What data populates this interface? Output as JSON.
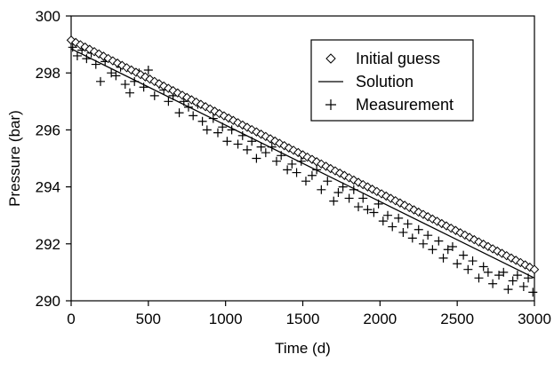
{
  "chart_data": {
    "type": "line",
    "xlabel": "Time (d)",
    "ylabel": "Pressure (bar)",
    "xlim": [
      0,
      3000
    ],
    "ylim": [
      290,
      300
    ],
    "x_ticks": [
      0,
      500,
      1000,
      1500,
      2000,
      2500,
      3000
    ],
    "y_ticks": [
      290,
      292,
      294,
      296,
      298,
      300
    ],
    "x_tick_labels": [
      "0",
      "500",
      "1000",
      "1500",
      "2000",
      "2500",
      "3000"
    ],
    "y_tick_labels": [
      "290",
      "292",
      "294",
      "296",
      "298",
      "300"
    ],
    "grid": false,
    "legend_position": "top-right",
    "series": [
      {
        "name": "Initial guess",
        "marker": "diamond",
        "x_start": 0,
        "x_end": 3000,
        "x_step": 30,
        "y_start": 299.15,
        "y_end": 291.1
      },
      {
        "name": "Solution",
        "marker": "line",
        "x": [
          0,
          3000
        ],
        "y": [
          298.85,
          290.8
        ]
      },
      {
        "name": "Measurement",
        "marker": "plus",
        "x": [
          10,
          40,
          70,
          100,
          130,
          160,
          190,
          220,
          260,
          290,
          320,
          350,
          380,
          410,
          440,
          470,
          500,
          540,
          570,
          600,
          630,
          660,
          700,
          730,
          760,
          790,
          820,
          850,
          880,
          920,
          950,
          980,
          1010,
          1040,
          1080,
          1110,
          1140,
          1170,
          1200,
          1230,
          1260,
          1300,
          1330,
          1360,
          1400,
          1430,
          1460,
          1490,
          1520,
          1560,
          1590,
          1620,
          1660,
          1700,
          1730,
          1760,
          1800,
          1830,
          1860,
          1890,
          1920,
          1960,
          1990,
          2020,
          2050,
          2080,
          2120,
          2150,
          2180,
          2210,
          2250,
          2280,
          2310,
          2340,
          2380,
          2410,
          2440,
          2470,
          2500,
          2540,
          2570,
          2600,
          2640,
          2670,
          2700,
          2730,
          2770,
          2800,
          2830,
          2860,
          2890,
          2930,
          2960,
          2990
        ],
        "y": [
          298.9,
          298.6,
          298.8,
          298.5,
          298.7,
          298.3,
          297.7,
          298.4,
          298.0,
          297.9,
          298.2,
          297.6,
          297.3,
          297.7,
          298.0,
          297.5,
          298.1,
          297.2,
          297.6,
          297.4,
          297.0,
          297.2,
          296.6,
          297.0,
          296.8,
          296.5,
          296.9,
          296.3,
          296.0,
          296.4,
          295.9,
          296.1,
          295.6,
          296.0,
          295.5,
          295.8,
          295.3,
          295.6,
          295.0,
          295.4,
          295.2,
          295.4,
          294.9,
          295.1,
          294.6,
          294.8,
          294.5,
          294.9,
          294.2,
          294.4,
          294.6,
          293.9,
          294.2,
          293.5,
          293.8,
          294.0,
          293.6,
          293.9,
          293.3,
          293.6,
          293.2,
          293.1,
          293.4,
          292.8,
          293.0,
          292.6,
          292.9,
          292.4,
          292.7,
          292.2,
          292.5,
          292.0,
          292.3,
          291.8,
          292.1,
          291.5,
          291.8,
          291.9,
          291.3,
          291.6,
          291.1,
          291.4,
          290.8,
          291.2,
          291.0,
          290.6,
          290.9,
          291.0,
          290.4,
          290.7,
          290.9,
          290.5,
          290.8,
          290.3
        ]
      }
    ]
  }
}
